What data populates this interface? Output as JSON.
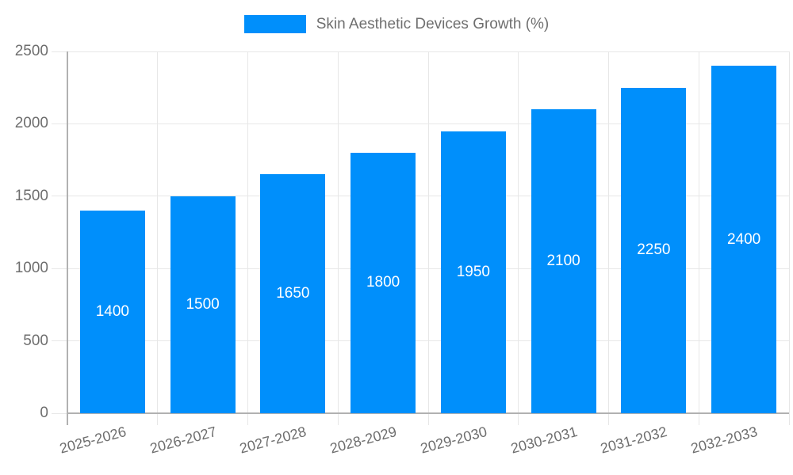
{
  "chart_data": {
    "type": "bar",
    "title": "Skin Aesthetic Devices Growth (%)",
    "categories": [
      "2025-2026",
      "2026-2027",
      "2027-2028",
      "2028-2029",
      "2029-2030",
      "2030-2031",
      "2031-2032",
      "2032-2033"
    ],
    "values": [
      1400,
      1500,
      1650,
      1800,
      1950,
      2100,
      2250,
      2400
    ],
    "xlabel": "",
    "ylabel": "",
    "ylim": [
      0,
      2500
    ],
    "yticks": [
      0,
      500,
      1000,
      1500,
      2000,
      2500
    ],
    "grid": true,
    "legend_position": "top",
    "colors": {
      "bar": "#008FFB",
      "bar_value_label": "#ffffff",
      "grid": "#e7e7e7",
      "axis": "#b1b1b1",
      "tick_text": "#6e6e6e",
      "legend_text": "#6f6f6f"
    }
  }
}
